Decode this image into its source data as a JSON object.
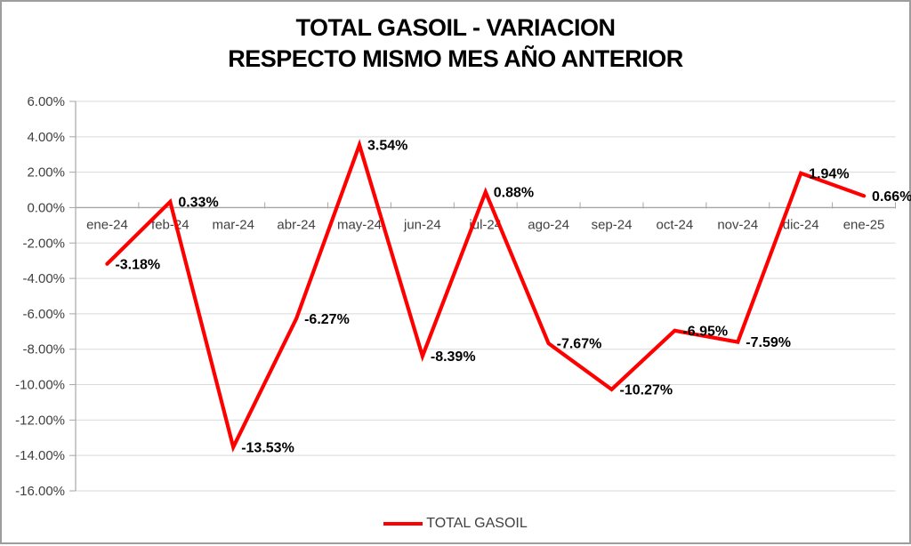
{
  "title": {
    "line1": "TOTAL GASOIL - VARIACION",
    "line2": "RESPECTO MISMO MES AÑO ANTERIOR"
  },
  "legend": {
    "label": "TOTAL GASOIL"
  },
  "colors": {
    "series": "#FF0000",
    "gridline": "#D9D9D9",
    "axis_line": "#A6A6A6",
    "axis_text": "#404040",
    "data_label_text": "#000000",
    "frame_border": "#9D9D9D",
    "background": "#FFFFFF"
  },
  "chart_data": {
    "type": "line",
    "title": "TOTAL GASOIL - VARIACION RESPECTO MISMO MES AÑO ANTERIOR",
    "categories": [
      "ene-24",
      "feb-24",
      "mar-24",
      "abr-24",
      "may-24",
      "jun-24",
      "jul-24",
      "ago-24",
      "sep-24",
      "oct-24",
      "nov-24",
      "dic-24",
      "ene-25"
    ],
    "series": [
      {
        "name": "TOTAL GASOIL",
        "color": "#FF0000",
        "values": [
          -3.18,
          0.33,
          -13.53,
          -6.27,
          3.54,
          -8.39,
          0.88,
          -7.67,
          -10.27,
          -6.95,
          -7.59,
          1.94,
          0.66
        ]
      }
    ],
    "data_labels": [
      "-3.18%",
      "0.33%",
      "-13.53%",
      "-6.27%",
      "3.54%",
      "-8.39%",
      "0.88%",
      "-7.67%",
      "-10.27%",
      "-6.95%",
      "-7.59%",
      "1.94%",
      "0.66%"
    ],
    "y_axis": {
      "min": -16,
      "max": 6,
      "step": 2,
      "tick_labels": [
        "6.00%",
        "4.00%",
        "2.00%",
        "0.00%",
        "-2.00%",
        "-4.00%",
        "-6.00%",
        "-8.00%",
        "-10.00%",
        "-12.00%",
        "-14.00%",
        "-16.00%"
      ]
    },
    "x_axis": {
      "label_position": "below_zero_line"
    },
    "legend_position": "bottom",
    "grid": true,
    "ylabel": "",
    "xlabel": ""
  }
}
